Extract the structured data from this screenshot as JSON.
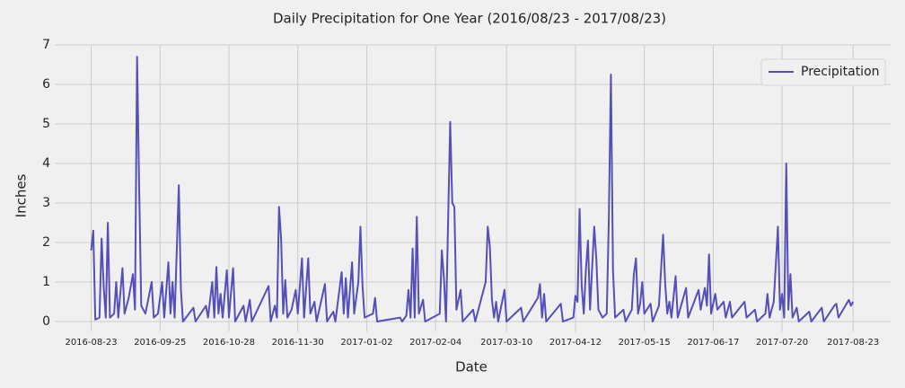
{
  "chart_data": {
    "type": "line",
    "title": "Daily Precipitation for One Year (2016/08/23 - 2017/08/23)",
    "xlabel": "Date",
    "ylabel": "Inches",
    "x": [
      "2016-08-23",
      "2016-08-24",
      "2016-08-25",
      "2016-08-27",
      "2016-08-28",
      "2016-08-29",
      "2016-08-30",
      "2016-08-31",
      "2016-09-01",
      "2016-09-03",
      "2016-09-04",
      "2016-09-05",
      "2016-09-07",
      "2016-09-08",
      "2016-09-10",
      "2016-09-12",
      "2016-09-13",
      "2016-09-14",
      "2016-09-15",
      "2016-09-16",
      "2016-09-18",
      "2016-09-21",
      "2016-09-22",
      "2016-09-24",
      "2016-09-26",
      "2016-09-27",
      "2016-09-29",
      "2016-09-30",
      "2016-10-01",
      "2016-10-02",
      "2016-10-04",
      "2016-10-05",
      "2016-10-06",
      "2016-10-11",
      "2016-10-12",
      "2016-10-17",
      "2016-10-18",
      "2016-10-20",
      "2016-10-21",
      "2016-10-22",
      "2016-10-23",
      "2016-10-24",
      "2016-10-25",
      "2016-10-27",
      "2016-10-28",
      "2016-10-30",
      "2016-10-31",
      "2016-11-04",
      "2016-11-05",
      "2016-11-07",
      "2016-11-08",
      "2016-11-16",
      "2016-11-17",
      "2016-11-19",
      "2016-11-20",
      "2016-11-21",
      "2016-11-22",
      "2016-11-23",
      "2016-11-24",
      "2016-11-25",
      "2016-11-27",
      "2016-11-29",
      "2016-11-30",
      "2016-12-02",
      "2016-12-03",
      "2016-12-05",
      "2016-12-06",
      "2016-12-08",
      "2016-12-09",
      "2016-12-13",
      "2016-12-14",
      "2016-12-17",
      "2016-12-18",
      "2016-12-21",
      "2016-12-22",
      "2016-12-23",
      "2016-12-24",
      "2016-12-26",
      "2016-12-27",
      "2016-12-29",
      "2016-12-30",
      "2016-12-31",
      "2017-01-01",
      "2017-01-05",
      "2017-01-06",
      "2017-01-07",
      "2017-01-18",
      "2017-01-19",
      "2017-01-21",
      "2017-01-22",
      "2017-01-23",
      "2017-01-24",
      "2017-01-25",
      "2017-01-26",
      "2017-01-27",
      "2017-01-29",
      "2017-01-30",
      "2017-02-06",
      "2017-02-07",
      "2017-02-08",
      "2017-02-09",
      "2017-02-11",
      "2017-02-12",
      "2017-02-13",
      "2017-02-14",
      "2017-02-16",
      "2017-02-17",
      "2017-02-22",
      "2017-02-23",
      "2017-02-28",
      "2017-03-01",
      "2017-03-02",
      "2017-03-03",
      "2017-03-04",
      "2017-03-05",
      "2017-03-06",
      "2017-03-09",
      "2017-03-10",
      "2017-03-17",
      "2017-03-18",
      "2017-03-25",
      "2017-03-26",
      "2017-03-27",
      "2017-03-28",
      "2017-03-29",
      "2017-04-05",
      "2017-04-06",
      "2017-04-11",
      "2017-04-12",
      "2017-04-13",
      "2017-04-14",
      "2017-04-15",
      "2017-04-16",
      "2017-04-17",
      "2017-04-18",
      "2017-04-19",
      "2017-04-21",
      "2017-04-22",
      "2017-04-23",
      "2017-04-25",
      "2017-04-27",
      "2017-04-28",
      "2017-04-29",
      "2017-04-30",
      "2017-05-01",
      "2017-05-05",
      "2017-05-06",
      "2017-05-09",
      "2017-05-10",
      "2017-05-11",
      "2017-05-12",
      "2017-05-13",
      "2017-05-14",
      "2017-05-15",
      "2017-05-18",
      "2017-05-19",
      "2017-05-22",
      "2017-05-24",
      "2017-05-25",
      "2017-05-26",
      "2017-05-27",
      "2017-05-28",
      "2017-05-30",
      "2017-05-31",
      "2017-06-04",
      "2017-06-05",
      "2017-06-10",
      "2017-06-11",
      "2017-06-13",
      "2017-06-14",
      "2017-06-15",
      "2017-06-16",
      "2017-06-18",
      "2017-06-19",
      "2017-06-22",
      "2017-06-23",
      "2017-06-25",
      "2017-06-26",
      "2017-07-02",
      "2017-07-03",
      "2017-07-07",
      "2017-07-08",
      "2017-07-12",
      "2017-07-13",
      "2017-07-14",
      "2017-07-16",
      "2017-07-18",
      "2017-07-19",
      "2017-07-20",
      "2017-07-21",
      "2017-07-22",
      "2017-07-23",
      "2017-07-24",
      "2017-07-25",
      "2017-07-27",
      "2017-07-28",
      "2017-08-02",
      "2017-08-03",
      "2017-08-08",
      "2017-08-09",
      "2017-08-14",
      "2017-08-15",
      "2017-08-16",
      "2017-08-21",
      "2017-08-22",
      "2017-08-23"
    ],
    "series": [
      {
        "name": "Precipitation",
        "color": "#5450b8",
        "values": [
          1.8,
          2.3,
          0.05,
          0.1,
          2.1,
          0.9,
          0.1,
          2.5,
          0.1,
          0.2,
          1.0,
          0.1,
          1.35,
          0.2,
          0.6,
          1.2,
          0.3,
          6.7,
          3.4,
          0.4,
          0.2,
          1.0,
          0.1,
          0.2,
          1.0,
          0.1,
          1.5,
          0.2,
          1.0,
          0.1,
          3.45,
          0.8,
          0,
          0.35,
          0,
          0.4,
          0.1,
          1.0,
          0.1,
          1.38,
          0.2,
          0.7,
          0.1,
          1.3,
          0.1,
          1.35,
          0,
          0.4,
          0,
          0.55,
          0,
          0.9,
          0,
          0.4,
          0.1,
          2.9,
          2.1,
          0.2,
          1.05,
          0.1,
          0.3,
          0.8,
          0.2,
          1.6,
          0.1,
          1.6,
          0.2,
          0.5,
          0,
          0.95,
          0,
          0.25,
          0,
          1.25,
          0.2,
          1.1,
          0.1,
          1.5,
          0.2,
          1.0,
          2.4,
          0.9,
          0.1,
          0.2,
          0.6,
          0,
          0.1,
          0,
          0.15,
          0.8,
          0.1,
          1.85,
          0.1,
          2.65,
          0.2,
          0.55,
          0,
          0.2,
          1.8,
          1.1,
          0,
          5.05,
          3.0,
          2.9,
          0.3,
          0.8,
          0,
          0.3,
          0,
          1.0,
          2.4,
          1.9,
          0.55,
          0.1,
          0.5,
          0,
          0.8,
          0,
          0.35,
          0,
          0.6,
          0.95,
          0.1,
          0.7,
          0,
          0.45,
          0,
          0.1,
          0.65,
          0.5,
          2.85,
          0.9,
          0.2,
          1.3,
          2.05,
          0.3,
          2.4,
          1.6,
          0.3,
          0.1,
          0.2,
          2.6,
          6.25,
          1.3,
          0.1,
          0.3,
          0,
          0.3,
          1.2,
          1.6,
          0.2,
          0.45,
          1.0,
          0.2,
          0.45,
          0,
          0.4,
          2.2,
          0.95,
          0.2,
          0.5,
          0.1,
          1.15,
          0.1,
          0.85,
          0.1,
          0.8,
          0.3,
          0.85,
          0.4,
          1.7,
          0.2,
          0.7,
          0.3,
          0.5,
          0.1,
          0.5,
          0.1,
          0.5,
          0.1,
          0.3,
          0,
          0.2,
          0.7,
          0.1,
          0.5,
          2.4,
          0.3,
          0.7,
          0.1,
          4.0,
          0.3,
          1.2,
          0.1,
          0.35,
          0,
          0.25,
          0,
          0.35,
          0,
          0.4,
          0.45,
          0.1,
          0.55,
          0.4,
          0.5
        ]
      }
    ],
    "xlim": [
      "2016-08-06",
      "2017-09-10"
    ],
    "xticks": [
      "2016-08-23",
      "2016-09-25",
      "2016-10-28",
      "2016-11-30",
      "2017-01-02",
      "2017-02-04",
      "2017-03-10",
      "2017-04-12",
      "2017-05-15",
      "2017-06-17",
      "2017-07-20",
      "2017-08-23"
    ],
    "ylim": [
      -0.25,
      7
    ],
    "yticks": [
      0,
      1,
      2,
      3,
      4,
      5,
      6,
      7
    ],
    "grid": true,
    "legend": "upper right"
  }
}
